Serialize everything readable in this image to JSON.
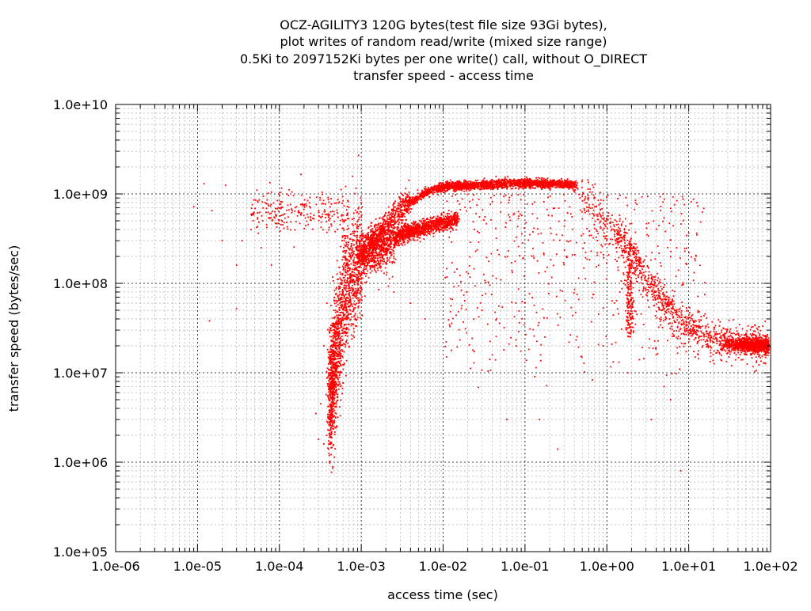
{
  "chart_data": {
    "type": "scatter",
    "title_lines": [
      "OCZ-AGILITY3 120G bytes(test file size 93Gi bytes),",
      "plot writes of random read/write (mixed size range)",
      "0.5Ki to 2097152Ki bytes per one write() call, without O_DIRECT",
      "transfer speed - access time"
    ],
    "xlabel": "access time (sec)",
    "ylabel": "transfer speed (bytes/sec)",
    "x_scale": "log",
    "y_scale": "log",
    "xlim": [
      1e-06,
      100
    ],
    "ylim": [
      100000.0,
      10000000000.0
    ],
    "x_ticks": [
      "1.0e-06",
      "1.0e-05",
      "1.0e-04",
      "1.0e-03",
      "1.0e-02",
      "1.0e-01",
      "1.0e+00",
      "1.0e+01",
      "1.0e+02"
    ],
    "y_ticks": [
      "1.0e+05",
      "1.0e+06",
      "1.0e+07",
      "1.0e+08",
      "1.0e+09",
      "1.0e+10"
    ],
    "grid": true,
    "point_color": "#ff0000",
    "series": [
      {
        "values": [
          [
            1.2e-05,
            1300000000.0
          ],
          [
            2.2e-05,
            1250000000.0
          ],
          [
            9e-06,
            720000000.0
          ],
          [
            1.5e-05,
            650000000.0
          ],
          [
            2e-05,
            300000000.0
          ],
          [
            3e-05,
            160000000.0
          ],
          [
            4.5e-05,
            400000000.0
          ],
          [
            1.4e-05,
            38000000.0
          ],
          [
            3e-05,
            52000000.0
          ],
          [
            3.5e-05,
            300000000.0
          ],
          [
            6e-05,
            250000000.0
          ],
          [
            8e-05,
            160000000.0
          ],
          [
            0.00028,
            3500000.0
          ],
          [
            0.0003,
            1800000.0
          ],
          [
            0.00035,
            1600000.0
          ],
          [
            0.0004,
            1400000.0
          ],
          [
            0.00042,
            3000000.0
          ],
          [
            0.00032,
            4500000.0
          ],
          [
            0.00035,
            20000000.0
          ],
          [
            0.00038,
            60000000.0
          ],
          [
            0.06,
            3000000.0
          ],
          [
            0.15,
            3000000.0
          ],
          [
            0.25,
            1400000.0
          ],
          [
            8.0,
            800000.0
          ],
          [
            3.5,
            3000000.0
          ],
          [
            5.0,
            7000000.0
          ],
          [
            6.0,
            5000000.0
          ],
          [
            12.0,
            15000000.0
          ],
          [
            1.8,
            10000000.0
          ],
          [
            2.5,
            14000000.0
          ],
          [
            0.9,
            20000000.0
          ],
          [
            0.0025,
            80000000.0
          ],
          [
            0.004,
            60000000.0
          ],
          [
            0.006,
            40000000.0
          ],
          [
            0.011,
            15000000.0
          ],
          [
            0.03,
            50000000.0
          ]
        ]
      }
    ]
  }
}
